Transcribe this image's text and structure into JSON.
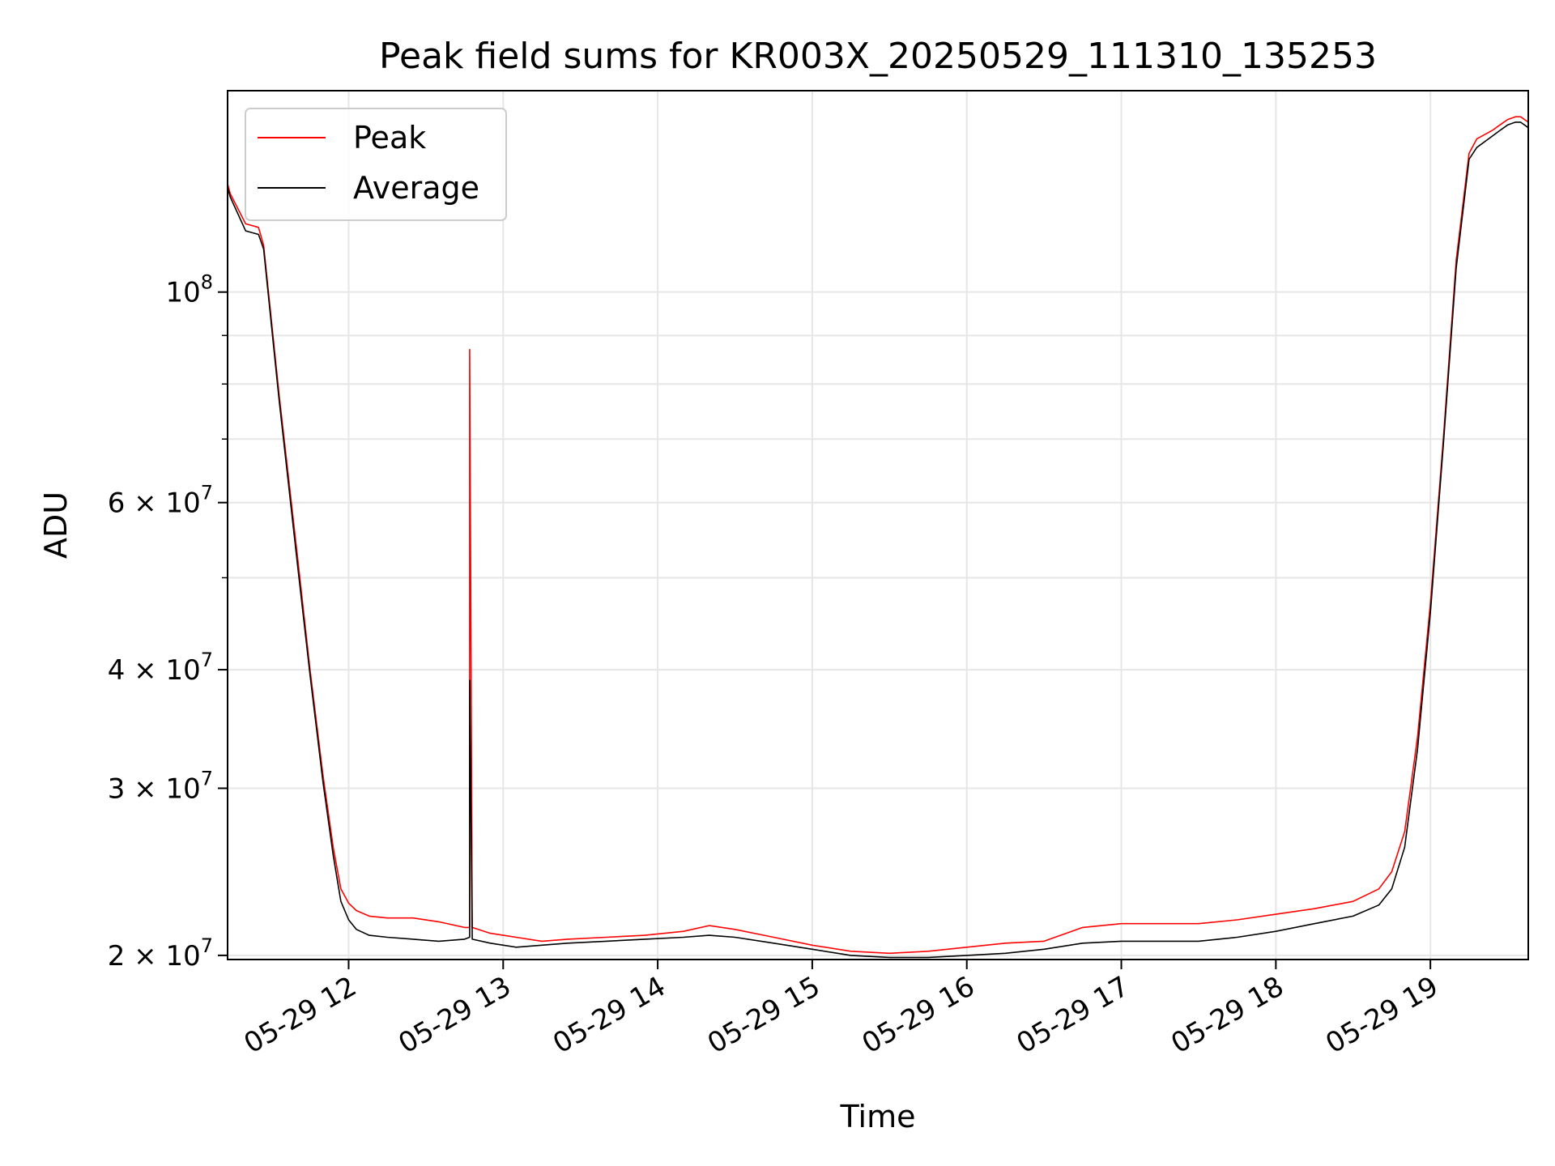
{
  "chart_data": {
    "type": "line",
    "title": "Peak field sums for KR003X_20250529_111310_135253",
    "xlabel": "Time",
    "ylabel": "ADU",
    "yscale": "log",
    "ylim": [
      19800000,
      163000000
    ],
    "xlim": [
      "2025-05-29 11:13",
      "2025-05-29 19:38"
    ],
    "grid": true,
    "legend_position": "top-left",
    "colors": {
      "Peak": "#ff0000",
      "Average": "#000000"
    },
    "x_ticks": [
      {
        "at": "2025-05-29 12:00",
        "label": "05-29 12"
      },
      {
        "at": "2025-05-29 13:00",
        "label": "05-29 13"
      },
      {
        "at": "2025-05-29 14:00",
        "label": "05-29 14"
      },
      {
        "at": "2025-05-29 15:00",
        "label": "05-29 15"
      },
      {
        "at": "2025-05-29 16:00",
        "label": "05-29 16"
      },
      {
        "at": "2025-05-29 17:00",
        "label": "05-29 17"
      },
      {
        "at": "2025-05-29 18:00",
        "label": "05-29 18"
      },
      {
        "at": "2025-05-29 19:00",
        "label": "05-29 19"
      }
    ],
    "y_ticks": [
      {
        "value": 20000000,
        "mant": "2 × 10",
        "exp": "7"
      },
      {
        "value": 30000000,
        "mant": "3 × 10",
        "exp": "7"
      },
      {
        "value": 40000000,
        "mant": "4 × 10",
        "exp": "7"
      },
      {
        "value": 60000000,
        "mant": "6 × 10",
        "exp": "7"
      },
      {
        "value": 100000000,
        "mant": "10",
        "exp": "8"
      }
    ],
    "series": [
      {
        "name": "Peak",
        "color": "#ff0000",
        "x": [
          "2025-05-29 11:13",
          "2025-05-29 11:13",
          "2025-05-29 11:14",
          "2025-05-29 11:20",
          "2025-05-29 11:25",
          "2025-05-29 11:27",
          "2025-05-29 11:33",
          "2025-05-29 11:40",
          "2025-05-29 11:45",
          "2025-05-29 11:50",
          "2025-05-29 11:54",
          "2025-05-29 11:57",
          "2025-05-29 12:00",
          "2025-05-29 12:03",
          "2025-05-29 12:08",
          "2025-05-29 12:15",
          "2025-05-29 12:25",
          "2025-05-29 12:35",
          "2025-05-29 12:45",
          "2025-05-29 12:47",
          "2025-05-29 12:47",
          "2025-05-29 12:48",
          "2025-05-29 12:55",
          "2025-05-29 13:05",
          "2025-05-29 13:15",
          "2025-05-29 13:25",
          "2025-05-29 13:40",
          "2025-05-29 13:55",
          "2025-05-29 14:10",
          "2025-05-29 14:20",
          "2025-05-29 14:30",
          "2025-05-29 14:45",
          "2025-05-29 15:00",
          "2025-05-29 15:15",
          "2025-05-29 15:30",
          "2025-05-29 15:45",
          "2025-05-29 16:00",
          "2025-05-29 16:15",
          "2025-05-29 16:30",
          "2025-05-29 16:45",
          "2025-05-29 17:00",
          "2025-05-29 17:15",
          "2025-05-29 17:30",
          "2025-05-29 17:45",
          "2025-05-29 18:00",
          "2025-05-29 18:15",
          "2025-05-29 18:30",
          "2025-05-29 18:40",
          "2025-05-29 18:45",
          "2025-05-29 18:50",
          "2025-05-29 18:55",
          "2025-05-29 19:00",
          "2025-05-29 19:05",
          "2025-05-29 19:10",
          "2025-05-29 19:15",
          "2025-05-29 19:18",
          "2025-05-29 19:24",
          "2025-05-29 19:27",
          "2025-05-29 19:30",
          "2025-05-29 19:33",
          "2025-05-29 19:35",
          "2025-05-29 19:38"
        ],
        "y": [
          160000000,
          130000000,
          127000000,
          118000000,
          117000000,
          112000000,
          78000000,
          53000000,
          40000000,
          31000000,
          26000000,
          23500000,
          22700000,
          22300000,
          22000000,
          21900000,
          21900000,
          21700000,
          21400000,
          21400000,
          87000000,
          21400000,
          21100000,
          20900000,
          20700000,
          20800000,
          20900000,
          21000000,
          21200000,
          21500000,
          21300000,
          20900000,
          20500000,
          20200000,
          20100000,
          20200000,
          20400000,
          20600000,
          20700000,
          21400000,
          21600000,
          21600000,
          21600000,
          21800000,
          22100000,
          22400000,
          22800000,
          23500000,
          24500000,
          27000000,
          34000000,
          47000000,
          70000000,
          108000000,
          140000000,
          145000000,
          148000000,
          150000000,
          152000000,
          153000000,
          153000000,
          151000000
        ]
      },
      {
        "name": "Average",
        "color": "#000000",
        "x": [
          "2025-05-29 11:13",
          "2025-05-29 11:13",
          "2025-05-29 11:14",
          "2025-05-29 11:20",
          "2025-05-29 11:25",
          "2025-05-29 11:27",
          "2025-05-29 11:33",
          "2025-05-29 11:40",
          "2025-05-29 11:45",
          "2025-05-29 11:50",
          "2025-05-29 11:54",
          "2025-05-29 11:57",
          "2025-05-29 12:00",
          "2025-05-29 12:03",
          "2025-05-29 12:08",
          "2025-05-29 12:15",
          "2025-05-29 12:25",
          "2025-05-29 12:35",
          "2025-05-29 12:45",
          "2025-05-29 12:47",
          "2025-05-29 12:47",
          "2025-05-29 12:48",
          "2025-05-29 12:55",
          "2025-05-29 13:05",
          "2025-05-29 13:15",
          "2025-05-29 13:25",
          "2025-05-29 13:40",
          "2025-05-29 13:55",
          "2025-05-29 14:10",
          "2025-05-29 14:20",
          "2025-05-29 14:30",
          "2025-05-29 14:45",
          "2025-05-29 15:00",
          "2025-05-29 15:15",
          "2025-05-29 15:30",
          "2025-05-29 15:45",
          "2025-05-29 16:00",
          "2025-05-29 16:15",
          "2025-05-29 16:30",
          "2025-05-29 16:45",
          "2025-05-29 17:00",
          "2025-05-29 17:15",
          "2025-05-29 17:30",
          "2025-05-29 17:45",
          "2025-05-29 18:00",
          "2025-05-29 18:15",
          "2025-05-29 18:30",
          "2025-05-29 18:40",
          "2025-05-29 18:45",
          "2025-05-29 18:50",
          "2025-05-29 18:55",
          "2025-05-29 19:00",
          "2025-05-29 19:05",
          "2025-05-29 19:10",
          "2025-05-29 19:15",
          "2025-05-29 19:18",
          "2025-05-29 19:24",
          "2025-05-29 19:27",
          "2025-05-29 19:30",
          "2025-05-29 19:33",
          "2025-05-29 19:35",
          "2025-05-29 19:38"
        ],
        "y": [
          158000000,
          129000000,
          126000000,
          116000000,
          115000000,
          111000000,
          77000000,
          52000000,
          39500000,
          30500000,
          25500000,
          22800000,
          21800000,
          21300000,
          21000000,
          20900000,
          20800000,
          20700000,
          20800000,
          20900000,
          39000000,
          20800000,
          20600000,
          20400000,
          20500000,
          20600000,
          20700000,
          20800000,
          20900000,
          21000000,
          20900000,
          20600000,
          20300000,
          20000000,
          19900000,
          19900000,
          20000000,
          20100000,
          20300000,
          20600000,
          20700000,
          20700000,
          20700000,
          20900000,
          21200000,
          21600000,
          22000000,
          22600000,
          23500000,
          26000000,
          33000000,
          46000000,
          69000000,
          106000000,
          138000000,
          142000000,
          146000000,
          148000000,
          150000000,
          151000000,
          151000000,
          149000000
        ]
      }
    ]
  }
}
